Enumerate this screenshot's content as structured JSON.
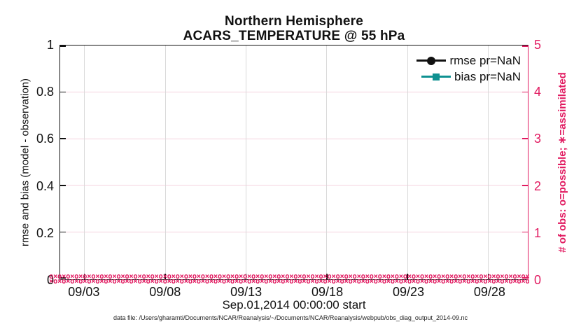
{
  "figure": {
    "caption": "data file: /Users/gharamti/Documents/NCAR/Reanalysis/~/Documents/NCAR/Reanalysis/webpub/obs_diag_output_2014-09.nc"
  },
  "chart_data": {
    "type": "line",
    "title": "Northern Hemisphere",
    "subtitle": "ACARS_TEMPERATURE @ 55 hPa",
    "xlabel": "Sep.01,2014 00:00:00 start",
    "ylabel_left": "rmse and bias (model - observation)",
    "ylabel_right": "# of obs: o=possible; ∗=assimilated",
    "ylim_left": [
      0,
      1
    ],
    "ylim_right": [
      0,
      5
    ],
    "yticks_left_labels": [
      "0",
      "0.2",
      "0.4",
      "0.6",
      "0.8",
      "1"
    ],
    "yticks_right_labels": [
      "0",
      "1",
      "2",
      "3",
      "4",
      "5"
    ],
    "xticks": [
      {
        "label": "09/03",
        "f": 0.052
      },
      {
        "label": "09/08",
        "f": 0.225
      },
      {
        "label": "09/13",
        "f": 0.398
      },
      {
        "label": "09/18",
        "f": 0.571
      },
      {
        "label": "09/23",
        "f": 0.744
      },
      {
        "label": "09/28",
        "f": 0.917
      }
    ],
    "series": [
      {
        "name": "rmse pr=NaN",
        "color": "#111111",
        "marker": "circle",
        "values": []
      },
      {
        "name": "bias pr=NaN",
        "color": "#0f9191",
        "marker": "square",
        "values": []
      }
    ],
    "obs_band": {
      "possible_marker": "o",
      "assimilated_marker": "×",
      "value": 0,
      "pairs_per_row": 58,
      "rows": 2
    },
    "legend_position": "top-right",
    "grid": "on"
  },
  "colors": {
    "pink": "#e11a60",
    "teal": "#0f9191",
    "grid_v": "#d9d9d9",
    "grid_h": "#f5d2de",
    "axis": "#111111"
  }
}
